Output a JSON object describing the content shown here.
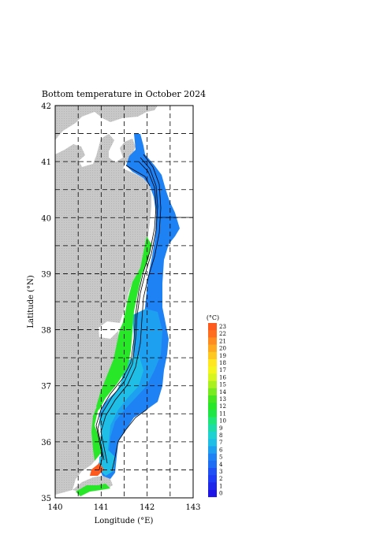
{
  "title": "Bottom temperature in October 2024",
  "axes": {
    "xlabel": "Longitude (°E)",
    "ylabel": "Latitude (°N)",
    "x_ticks": [
      "140",
      "141",
      "142",
      "143"
    ],
    "y_ticks": [
      "35",
      "36",
      "37",
      "38",
      "39",
      "40",
      "41",
      "42"
    ],
    "x_range": [
      140,
      143
    ],
    "y_range": [
      35,
      42
    ],
    "grid_lon": [
      140.5,
      141,
      141.5,
      142,
      142.5
    ],
    "grid_lat": [
      35.5,
      36,
      36.5,
      37,
      37.5,
      38,
      38.5,
      39,
      39.5,
      40,
      40.5,
      41,
      41.5
    ]
  },
  "colorbar": {
    "unit": "(°C)",
    "labels": [
      "23",
      "22",
      "21",
      "20",
      "19",
      "18",
      "17",
      "16",
      "15",
      "14",
      "13",
      "12",
      "11",
      "10",
      "9",
      "8",
      "7",
      "6",
      "5",
      "4",
      "3",
      "2",
      "1",
      "0"
    ],
    "colors": [
      "#ff5a1e",
      "#ff6e1e",
      "#ff8c1e",
      "#ffaa1e",
      "#ffc81e",
      "#ffe61e",
      "#f5f51e",
      "#d7f51e",
      "#aaf01e",
      "#78eb1e",
      "#46e61e",
      "#28e628",
      "#1ee646",
      "#1ee678",
      "#1edcaa",
      "#1ed2d2",
      "#1ebee6",
      "#1ea0f0",
      "#1e82f5",
      "#1e6ef5",
      "#1e50f5",
      "#1e3cf5",
      "#1e28eb",
      "#1e14e6"
    ]
  },
  "colors": {
    "land": "#c8c8c8",
    "deep_blue": "#1e82f5",
    "mid_blue": "#1ea0f0",
    "cyan": "#1ebee6",
    "green": "#28e628",
    "warm": "#ff5a1e"
  }
}
